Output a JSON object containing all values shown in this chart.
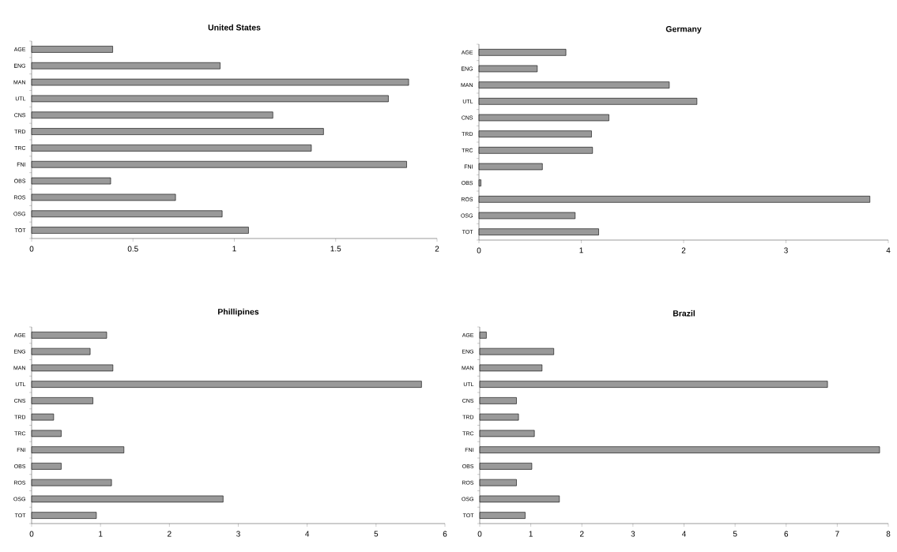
{
  "chart_data": [
    {
      "type": "bar",
      "orientation": "horizontal",
      "title": "United States",
      "categories": [
        "AGE",
        "ENG",
        "MAN",
        "UTL",
        "CNS",
        "TRD",
        "TRC",
        "FNI",
        "OBS",
        "ROS",
        "OSG",
        "TOT"
      ],
      "values": [
        0.4,
        0.93,
        1.86,
        1.76,
        1.19,
        1.44,
        1.38,
        1.85,
        0.39,
        0.71,
        0.94,
        1.07
      ],
      "color": "#999999",
      "xlim": [
        0,
        2
      ],
      "xticks": [
        0,
        0.5,
        1,
        1.5,
        2
      ],
      "grid": false
    },
    {
      "type": "bar",
      "orientation": "horizontal",
      "title": "Germany",
      "categories": [
        "AGE",
        "ENG",
        "MAN",
        "UTL",
        "CNS",
        "TRD",
        "TRC",
        "FNI",
        "OBS",
        "ROS",
        "OSG",
        "TOT"
      ],
      "values": [
        0.85,
        0.57,
        1.86,
        2.13,
        1.27,
        1.1,
        1.11,
        0.62,
        0.02,
        3.82,
        0.94,
        1.17
      ],
      "color": "#999999",
      "xlim": [
        0,
        4
      ],
      "xticks": [
        0,
        1,
        2,
        3,
        4
      ],
      "grid": false
    },
    {
      "type": "bar",
      "orientation": "horizontal",
      "title": "Phillipines",
      "categories": [
        "AGE",
        "ENG",
        "MAN",
        "UTL",
        "CNS",
        "TRD",
        "TRC",
        "FNI",
        "OBS",
        "ROS",
        "OSG",
        "TOT"
      ],
      "values": [
        1.09,
        0.85,
        1.18,
        5.66,
        0.89,
        0.32,
        0.43,
        1.34,
        0.43,
        1.16,
        2.78,
        0.94
      ],
      "color": "#999999",
      "xlim": [
        0,
        6
      ],
      "xticks": [
        0,
        1,
        2,
        3,
        4,
        5,
        6
      ],
      "grid": false
    },
    {
      "type": "bar",
      "orientation": "horizontal",
      "title": "Brazil",
      "categories": [
        "AGE",
        "ENG",
        "MAN",
        "UTL",
        "CNS",
        "TRD",
        "TRC",
        "FNI",
        "OBS",
        "ROS",
        "OSG",
        "TOT"
      ],
      "values": [
        0.13,
        1.45,
        1.22,
        6.81,
        0.72,
        0.76,
        1.07,
        7.83,
        1.02,
        0.72,
        1.56,
        0.89
      ],
      "color": "#999999",
      "xlim": [
        0,
        8
      ],
      "xticks": [
        0,
        1,
        2,
        3,
        4,
        5,
        6,
        7,
        8
      ],
      "grid": false
    }
  ]
}
